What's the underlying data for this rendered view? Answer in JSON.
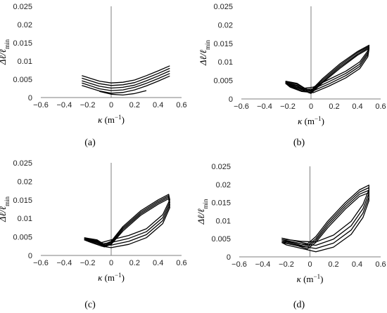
{
  "chart_data": [
    {
      "type": "line",
      "panel_label": "(a)",
      "xlabel_sym": "κ",
      "xlabel_unit": "(m",
      "xlabel_exp": "−1",
      "xlabel_close": ")",
      "ylabel_main": "Δℓ/ℓ",
      "ylabel_sub": "min",
      "xlim": [
        -0.6,
        0.6
      ],
      "ylim": [
        0,
        0.025
      ],
      "xticks": [
        "−0.6",
        "−0.4",
        "−0.2",
        "0",
        "0.2",
        "0.4",
        "0.6"
      ],
      "yticks": [
        "0",
        "0.005",
        "0.01",
        "0.015",
        "0.02",
        "0.025"
      ],
      "series": [
        {
          "x": [
            -0.25,
            -0.1,
            0,
            0.1,
            0.2,
            0.3,
            0.4,
            0.5
          ],
          "y": [
            0.006,
            0.0045,
            0.004,
            0.0042,
            0.0048,
            0.006,
            0.0073,
            0.0087
          ]
        },
        {
          "x": [
            -0.25,
            -0.1,
            0,
            0.1,
            0.2,
            0.3,
            0.4,
            0.5
          ],
          "y": [
            0.0053,
            0.0038,
            0.0033,
            0.0035,
            0.0041,
            0.0053,
            0.0066,
            0.008
          ]
        },
        {
          "x": [
            -0.25,
            -0.1,
            0,
            0.1,
            0.2,
            0.3,
            0.4,
            0.5
          ],
          "y": [
            0.0046,
            0.0031,
            0.0026,
            0.0028,
            0.0034,
            0.0046,
            0.0059,
            0.0073
          ]
        },
        {
          "x": [
            -0.25,
            -0.1,
            0,
            0.1,
            0.2,
            0.3,
            0.4,
            0.5
          ],
          "y": [
            0.004,
            0.0024,
            0.0019,
            0.0021,
            0.0028,
            0.0039,
            0.0052,
            0.0066
          ]
        },
        {
          "x": [
            -0.25,
            -0.1,
            0,
            0.1,
            0.2,
            0.3,
            0.4,
            0.5
          ],
          "y": [
            0.0033,
            0.0018,
            0.0012,
            0.0014,
            0.0021,
            0.0032,
            0.0045,
            0.0059
          ]
        },
        {
          "x": [
            -0.1,
            0,
            0.1,
            0.2,
            0.3
          ],
          "y": [
            0.0017,
            0.0009,
            0.0007,
            0.0011,
            0.0019
          ]
        }
      ]
    },
    {
      "type": "line",
      "panel_label": "(b)",
      "xlabel_sym": "κ",
      "xlabel_unit": "(m",
      "xlabel_exp": "−1",
      "xlabel_close": ")",
      "ylabel_main": "Δℓ/ℓ",
      "ylabel_sub": "min",
      "xlim": [
        -0.6,
        0.6
      ],
      "ylim": [
        0,
        0.025
      ],
      "xticks": [
        "−0.6",
        "−0.4",
        "−0.2",
        "0",
        "0.2",
        "0.4",
        "0.6"
      ],
      "yticks": [
        "0",
        "0.005",
        "0.01",
        "0.015",
        "0.02",
        "0.025"
      ],
      "series": [
        {
          "x": [
            -0.22,
            -0.12,
            -0.05,
            0.0,
            0.1,
            0.25,
            0.4,
            0.5,
            0.49,
            0.42,
            0.3,
            0.15,
            0.02,
            -0.08,
            -0.18,
            -0.22
          ],
          "y": [
            0.0048,
            0.0042,
            0.0028,
            0.0023,
            0.0055,
            0.0095,
            0.0128,
            0.0145,
            0.013,
            0.01,
            0.0075,
            0.0052,
            0.0032,
            0.0028,
            0.0038,
            0.0048
          ]
        },
        {
          "x": [
            -0.22,
            -0.12,
            -0.05,
            0.0,
            0.1,
            0.25,
            0.4,
            0.5,
            0.49,
            0.42,
            0.3,
            0.15,
            0.02,
            -0.08,
            -0.18,
            -0.22
          ],
          "y": [
            0.0046,
            0.004,
            0.0025,
            0.002,
            0.0051,
            0.0091,
            0.0125,
            0.0142,
            0.0125,
            0.0094,
            0.0069,
            0.0046,
            0.0027,
            0.0025,
            0.0036,
            0.0046
          ]
        },
        {
          "x": [
            -0.22,
            -0.12,
            -0.05,
            0.0,
            0.1,
            0.25,
            0.4,
            0.5,
            0.49,
            0.42,
            0.3,
            0.15,
            0.02,
            -0.08,
            -0.18,
            -0.22
          ],
          "y": [
            0.0044,
            0.0037,
            0.0022,
            0.0017,
            0.0047,
            0.0087,
            0.0121,
            0.0139,
            0.012,
            0.0088,
            0.0063,
            0.004,
            0.0022,
            0.0022,
            0.0034,
            0.0044
          ]
        },
        {
          "x": [
            -0.22,
            -0.12,
            -0.05,
            0.0,
            0.1,
            0.25,
            0.4,
            0.5,
            0.49,
            0.42,
            0.3,
            0.15,
            0.02,
            -0.08,
            -0.18,
            -0.22
          ],
          "y": [
            0.0042,
            0.0035,
            0.002,
            0.0015,
            0.0044,
            0.0083,
            0.0118,
            0.0136,
            0.0114,
            0.0082,
            0.0057,
            0.0034,
            0.0017,
            0.002,
            0.0032,
            0.0042
          ]
        }
      ]
    },
    {
      "type": "line",
      "panel_label": "(c)",
      "xlabel_sym": "κ",
      "xlabel_unit": "(m",
      "xlabel_exp": "−1",
      "xlabel_close": ")",
      "ylabel_main": "Δℓ/ℓ",
      "ylabel_sub": "min",
      "xlim": [
        -0.6,
        0.6
      ],
      "ylim": [
        0,
        0.025
      ],
      "xticks": [
        "−0.6",
        "−0.4",
        "−0.2",
        "0",
        "0.2",
        "0.4",
        "0.6"
      ],
      "yticks": [
        "0",
        "0.005",
        "0.01",
        "0.015",
        "0.02",
        "0.025"
      ],
      "series": [
        {
          "x": [
            -0.23,
            -0.12,
            -0.06,
            0.0,
            0.1,
            0.25,
            0.4,
            0.49,
            0.5,
            0.44,
            0.3,
            0.15,
            0.0,
            -0.08,
            -0.18,
            -0.23
          ],
          "y": [
            0.0048,
            0.0042,
            0.003,
            0.0038,
            0.0078,
            0.012,
            0.015,
            0.0165,
            0.015,
            0.011,
            0.0072,
            0.0054,
            0.0042,
            0.0035,
            0.0042,
            0.0048
          ]
        },
        {
          "x": [
            -0.23,
            -0.12,
            -0.06,
            0.0,
            0.1,
            0.25,
            0.4,
            0.49,
            0.5,
            0.44,
            0.3,
            0.15,
            0.0,
            -0.08,
            -0.18,
            -0.23
          ],
          "y": [
            0.0046,
            0.004,
            0.0027,
            0.0035,
            0.0074,
            0.0116,
            0.0146,
            0.0161,
            0.0143,
            0.0102,
            0.0064,
            0.0046,
            0.0035,
            0.0031,
            0.004,
            0.0046
          ]
        },
        {
          "x": [
            -0.23,
            -0.12,
            -0.06,
            0.0,
            0.1,
            0.25,
            0.4,
            0.49,
            0.5,
            0.44,
            0.3,
            0.15,
            0.0,
            -0.08,
            -0.18,
            -0.23
          ],
          "y": [
            0.0044,
            0.0038,
            0.0025,
            0.0032,
            0.007,
            0.0112,
            0.0142,
            0.0157,
            0.0136,
            0.0094,
            0.0056,
            0.0038,
            0.0028,
            0.0028,
            0.0038,
            0.0044
          ]
        },
        {
          "x": [
            -0.23,
            -0.12,
            -0.06,
            0.0,
            0.1,
            0.25,
            0.4,
            0.49,
            0.5,
            0.44,
            0.3,
            0.15,
            0.0,
            -0.08,
            -0.18,
            -0.23
          ],
          "y": [
            0.0042,
            0.0036,
            0.0023,
            0.003,
            0.0066,
            0.0108,
            0.0138,
            0.0153,
            0.0129,
            0.0086,
            0.0048,
            0.003,
            0.0021,
            0.0025,
            0.0036,
            0.0042
          ]
        }
      ]
    },
    {
      "type": "line",
      "panel_label": "(d)",
      "xlabel_sym": "κ",
      "xlabel_unit": "(m",
      "xlabel_exp": "−1",
      "xlabel_close": ")",
      "ylabel_main": "Δℓ/ℓ",
      "ylabel_sub": "min",
      "xlim": [
        -0.6,
        0.6
      ],
      "ylim": [
        0,
        0.025
      ],
      "xticks": [
        "−0.6",
        "−0.4",
        "−0.2",
        "0",
        "0.2",
        "0.4",
        "0.6"
      ],
      "yticks": [
        "0",
        "0.005",
        "0.01",
        "0.015",
        "0.02",
        "0.025"
      ],
      "series": [
        {
          "x": [
            -0.24,
            -0.1,
            -0.02,
            0.05,
            0.15,
            0.3,
            0.42,
            0.5,
            0.5,
            0.45,
            0.35,
            0.2,
            0.05,
            -0.08,
            -0.2,
            -0.24
          ],
          "y": [
            0.0052,
            0.0042,
            0.0036,
            0.0056,
            0.0098,
            0.015,
            0.0185,
            0.0198,
            0.0185,
            0.0145,
            0.0098,
            0.006,
            0.0041,
            0.0043,
            0.0048,
            0.0052
          ]
        },
        {
          "x": [
            -0.24,
            -0.1,
            -0.02,
            0.05,
            0.15,
            0.3,
            0.42,
            0.5,
            0.5,
            0.45,
            0.35,
            0.2,
            0.05,
            -0.08,
            -0.2,
            -0.24
          ],
          "y": [
            0.0048,
            0.0038,
            0.0031,
            0.005,
            0.0092,
            0.0144,
            0.0179,
            0.0191,
            0.0175,
            0.0133,
            0.0086,
            0.0049,
            0.0032,
            0.0036,
            0.0043,
            0.0048
          ]
        },
        {
          "x": [
            -0.24,
            -0.1,
            -0.02,
            0.05,
            0.15,
            0.3,
            0.42,
            0.5,
            0.5,
            0.45,
            0.35,
            0.2,
            0.05,
            -0.08,
            -0.2,
            -0.24
          ],
          "y": [
            0.0044,
            0.0034,
            0.0027,
            0.0045,
            0.0086,
            0.0138,
            0.0173,
            0.0184,
            0.0165,
            0.0121,
            0.0074,
            0.0038,
            0.0023,
            0.003,
            0.0038,
            0.0044
          ]
        },
        {
          "x": [
            -0.24,
            -0.1,
            -0.02,
            0.05,
            0.15,
            0.3,
            0.42,
            0.5,
            0.5,
            0.45,
            0.35,
            0.2,
            0.05,
            -0.08,
            -0.2,
            -0.24
          ],
          "y": [
            0.004,
            0.003,
            0.0022,
            0.004,
            0.008,
            0.0132,
            0.0167,
            0.0177,
            0.0155,
            0.0109,
            0.0062,
            0.0027,
            0.0014,
            0.0024,
            0.0033,
            0.004
          ]
        }
      ]
    }
  ]
}
